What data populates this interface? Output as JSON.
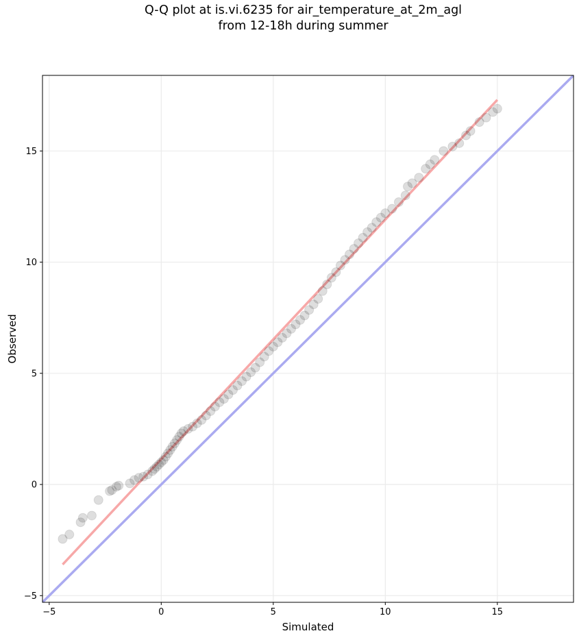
{
  "chart_data": {
    "type": "scatter",
    "title_line1": "Q-Q plot at is.vi.6235 for air_temperature_at_2m_agl",
    "title_line2": "from 12-18h during summer",
    "xlabel": "Simulated",
    "ylabel": "Observed",
    "xlim": [
      -5.3,
      18.4
    ],
    "ylim": [
      -5.3,
      18.4
    ],
    "xticks": [
      -5,
      0,
      5,
      10,
      15
    ],
    "yticks": [
      -5,
      0,
      5,
      10,
      15
    ],
    "grid": true,
    "reference_line": {
      "from": [
        -5.3,
        -5.3
      ],
      "to": [
        18.4,
        18.4
      ],
      "color": "#aaaaf0"
    },
    "fit_line": {
      "from": [
        -4.4,
        -3.6
      ],
      "to": [
        15.0,
        17.3
      ],
      "color": "#f7a8a8"
    },
    "points": [
      [
        -4.4,
        -2.45
      ],
      [
        -4.1,
        -2.25
      ],
      [
        -3.6,
        -1.7
      ],
      [
        -3.5,
        -1.5
      ],
      [
        -3.1,
        -1.4
      ],
      [
        -2.8,
        -0.7
      ],
      [
        -2.3,
        -0.3
      ],
      [
        -2.2,
        -0.25
      ],
      [
        -2.0,
        -0.1
      ],
      [
        -1.9,
        -0.05
      ],
      [
        -1.4,
        0.05
      ],
      [
        -1.2,
        0.2
      ],
      [
        -1.0,
        0.3
      ],
      [
        -0.8,
        0.35
      ],
      [
        -0.6,
        0.45
      ],
      [
        -0.4,
        0.6
      ],
      [
        -0.3,
        0.7
      ],
      [
        -0.2,
        0.8
      ],
      [
        -0.1,
        0.9
      ],
      [
        0.0,
        1.0
      ],
      [
        0.1,
        1.1
      ],
      [
        0.2,
        1.25
      ],
      [
        0.3,
        1.4
      ],
      [
        0.4,
        1.55
      ],
      [
        0.5,
        1.7
      ],
      [
        0.6,
        1.85
      ],
      [
        0.7,
        2.0
      ],
      [
        0.8,
        2.15
      ],
      [
        0.9,
        2.3
      ],
      [
        1.0,
        2.4
      ],
      [
        1.2,
        2.5
      ],
      [
        1.4,
        2.6
      ],
      [
        1.6,
        2.75
      ],
      [
        1.8,
        2.9
      ],
      [
        2.0,
        3.1
      ],
      [
        2.2,
        3.3
      ],
      [
        2.4,
        3.5
      ],
      [
        2.6,
        3.7
      ],
      [
        2.8,
        3.85
      ],
      [
        3.0,
        4.05
      ],
      [
        3.2,
        4.25
      ],
      [
        3.4,
        4.45
      ],
      [
        3.6,
        4.65
      ],
      [
        3.8,
        4.85
      ],
      [
        4.0,
        5.05
      ],
      [
        4.2,
        5.25
      ],
      [
        4.4,
        5.5
      ],
      [
        4.6,
        5.75
      ],
      [
        4.8,
        6.0
      ],
      [
        5.0,
        6.2
      ],
      [
        5.2,
        6.4
      ],
      [
        5.4,
        6.6
      ],
      [
        5.6,
        6.8
      ],
      [
        5.8,
        7.0
      ],
      [
        6.0,
        7.2
      ],
      [
        6.2,
        7.4
      ],
      [
        6.4,
        7.6
      ],
      [
        6.6,
        7.85
      ],
      [
        6.8,
        8.1
      ],
      [
        7.0,
        8.35
      ],
      [
        7.2,
        8.7
      ],
      [
        7.4,
        9.0
      ],
      [
        7.6,
        9.3
      ],
      [
        7.8,
        9.55
      ],
      [
        8.0,
        9.85
      ],
      [
        8.2,
        10.1
      ],
      [
        8.4,
        10.35
      ],
      [
        8.6,
        10.6
      ],
      [
        8.8,
        10.85
      ],
      [
        9.0,
        11.1
      ],
      [
        9.2,
        11.35
      ],
      [
        9.4,
        11.55
      ],
      [
        9.6,
        11.8
      ],
      [
        9.8,
        12.0
      ],
      [
        10.0,
        12.2
      ],
      [
        10.3,
        12.4
      ],
      [
        10.6,
        12.7
      ],
      [
        10.9,
        13.0
      ],
      [
        11.0,
        13.4
      ],
      [
        11.2,
        13.55
      ],
      [
        11.5,
        13.8
      ],
      [
        11.8,
        14.2
      ],
      [
        12.0,
        14.4
      ],
      [
        12.2,
        14.6
      ],
      [
        12.6,
        15.0
      ],
      [
        13.0,
        15.2
      ],
      [
        13.3,
        15.35
      ],
      [
        13.6,
        15.7
      ],
      [
        13.8,
        15.9
      ],
      [
        14.2,
        16.3
      ],
      [
        14.5,
        16.5
      ],
      [
        14.8,
        16.75
      ],
      [
        15.0,
        16.9
      ]
    ]
  }
}
